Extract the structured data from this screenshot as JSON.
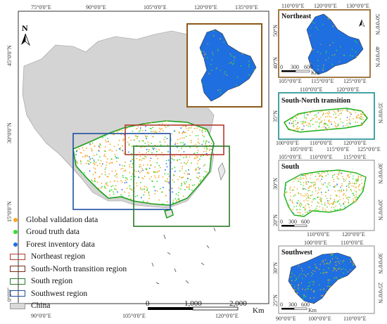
{
  "main_map": {
    "north_label": "N",
    "top_ticks": [
      "75°0'0\"E",
      "90°0'0\"E",
      "105°0'0\"E",
      "120°0'0\"E",
      "135°0'0\"E"
    ],
    "bottom_ticks": [
      "90°0'0\"E",
      "105°0'0\"E",
      "120°0'0\"E"
    ],
    "left_ticks": [
      "45°0'0\"N",
      "30°0'0\"N",
      "15°0'0\"N",
      "0°0'0\""
    ],
    "scale": {
      "labels": [
        "0",
        "1,000",
        "2,000"
      ],
      "unit": "Km"
    }
  },
  "legend": {
    "items": [
      {
        "label": "Global validation data",
        "kind": "dot",
        "color": "#f5a623"
      },
      {
        "label": "Groud truth data",
        "kind": "dot",
        "color": "#2ee02e"
      },
      {
        "label": "Forest inventory data",
        "kind": "dot",
        "color": "#1f6fe0"
      },
      {
        "label": "Northeast region",
        "kind": "box",
        "color": "#b23a2e"
      },
      {
        "label": "South-North transition region",
        "kind": "box",
        "color": "#7a2a1a"
      },
      {
        "label": "South region",
        "kind": "box",
        "color": "#2a7a2a"
      },
      {
        "label": "Southwest region",
        "kind": "box",
        "color": "#1f4fa0"
      },
      {
        "label": "China",
        "kind": "fill",
        "color": "#d9d9d9"
      }
    ]
  },
  "insets": [
    {
      "title": "Northeast",
      "frame_color": "#8b5a1a",
      "top_ticks": [
        "110°0'0\"E",
        "120°0'0\"E",
        "130°0'0\"E"
      ],
      "bottom_ticks": [
        "105°0'0\"E",
        "115°0'0\"E",
        "125°0'0\"E"
      ],
      "scale": [
        "0",
        "300",
        "600"
      ],
      "unit": "Km",
      "left_ticks": [
        "50°N",
        "40°N"
      ],
      "right_ticks": [
        "50°0'0\"N",
        "40°0'0\"N"
      ]
    },
    {
      "title": "South-North transition",
      "frame_color": "#1a8a8a",
      "top_ticks": [
        "110°0'0\"E",
        "120°0'0\"E"
      ],
      "bottom_ticks": [
        "100°0'0\"E",
        "105°0'0\"E",
        "110°0'0\"E",
        "115°0'0\"E",
        "120°0'0\"E",
        "125°0'0\"E"
      ],
      "left_ticks": [
        "35°N"
      ],
      "right_ticks": [
        "35°0'0\"N"
      ]
    },
    {
      "title": "South",
      "frame_color": "#888888",
      "top_ticks": [
        "105°0'0\"E",
        "110°0'0\"E",
        "115°0'0\"E"
      ],
      "bottom_ticks": [
        "110°0'0\"E",
        "120°0'0\"E"
      ],
      "scale": [
        "0",
        "300",
        "600"
      ],
      "left_ticks": [
        "30°N",
        "20°N"
      ],
      "right_ticks": [
        "30°0'0\"N",
        "20°0'0\"N"
      ]
    },
    {
      "title": "Southwest",
      "frame_color": "#888888",
      "top_ticks": [
        "100°0'0\"E",
        "110°0'0\"E"
      ],
      "bottom_ticks": [
        "90°0'0\"E",
        "100°0'0\"E",
        "110°0'0\"E"
      ],
      "scale": [
        "0",
        "300",
        "600"
      ],
      "unit": "Km",
      "left_ticks": [
        "30°N",
        "25°N"
      ],
      "right_ticks": [
        "30°0'0\"N",
        "25°0'0\"N"
      ]
    }
  ]
}
